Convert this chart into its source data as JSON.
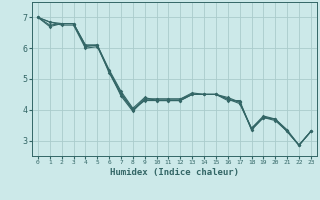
{
  "title": "",
  "xlabel": "Humidex (Indice chaleur)",
  "xlim": [
    -0.5,
    23.5
  ],
  "ylim": [
    2.5,
    7.5
  ],
  "yticks": [
    3,
    4,
    5,
    6,
    7
  ],
  "xticks": [
    0,
    1,
    2,
    3,
    4,
    5,
    6,
    7,
    8,
    9,
    10,
    11,
    12,
    13,
    14,
    15,
    16,
    17,
    18,
    19,
    20,
    21,
    22,
    23
  ],
  "background_color": "#cce9e9",
  "grid_color": "#aacccc",
  "line_color": "#336666",
  "lines": [
    [
      7.0,
      6.85,
      6.75,
      6.75,
      6.0,
      6.05,
      5.25,
      4.45,
      3.95,
      4.35,
      4.35,
      4.35,
      4.35,
      4.5,
      4.5,
      4.5,
      4.35,
      4.2,
      3.4,
      3.75,
      3.7,
      3.3,
      2.85,
      3.3
    ],
    [
      7.0,
      6.75,
      6.8,
      6.8,
      6.05,
      6.1,
      5.3,
      4.6,
      4.05,
      4.4,
      4.3,
      4.3,
      4.3,
      4.5,
      4.5,
      4.5,
      4.35,
      4.25,
      3.35,
      3.75,
      3.65,
      3.3,
      2.85,
      3.3
    ],
    [
      7.0,
      6.7,
      6.8,
      6.8,
      6.1,
      6.1,
      5.2,
      4.5,
      4.0,
      4.3,
      4.3,
      4.3,
      4.3,
      4.5,
      4.5,
      4.5,
      4.3,
      4.3,
      3.35,
      3.75,
      3.7,
      3.3,
      2.85,
      3.3
    ],
    [
      7.0,
      6.85,
      6.8,
      6.8,
      6.1,
      6.1,
      5.25,
      4.55,
      4.0,
      4.35,
      4.35,
      4.35,
      4.35,
      4.55,
      4.5,
      4.5,
      4.4,
      4.25,
      3.4,
      3.8,
      3.7,
      3.35,
      2.85,
      3.3
    ]
  ]
}
